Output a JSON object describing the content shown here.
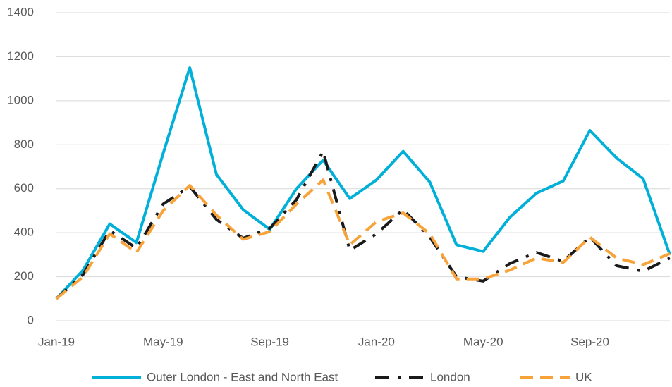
{
  "chart_data": {
    "type": "line",
    "categories": [
      "Jan-19",
      null,
      null,
      null,
      "May-19",
      null,
      null,
      null,
      "Sep-19",
      null,
      null,
      null,
      "Jan-20",
      null,
      null,
      null,
      "May-20",
      null,
      null,
      null,
      "Sep-20",
      null,
      null,
      null
    ],
    "series": [
      {
        "name": "Outer London - East and North East",
        "color": "#00b0d8",
        "dash": "solid",
        "values": [
          100,
          230,
          440,
          355,
          760,
          1150,
          665,
          505,
          415,
          600,
          730,
          555,
          640,
          770,
          630,
          345,
          315,
          470,
          580,
          635,
          865,
          740,
          645,
          300
        ]
      },
      {
        "name": "London",
        "color": "#1a1a1a",
        "dash": "dash-dot",
        "values": [
          100,
          210,
          410,
          330,
          530,
          610,
          460,
          375,
          420,
          550,
          770,
          320,
          395,
          505,
          380,
          200,
          180,
          260,
          310,
          270,
          380,
          250,
          225,
          285
        ]
      },
      {
        "name": "UK",
        "color": "#f7a33a",
        "dash": "dash",
        "values": [
          100,
          200,
          395,
          310,
          500,
          615,
          480,
          370,
          405,
          530,
          640,
          345,
          450,
          490,
          395,
          190,
          190,
          230,
          285,
          265,
          380,
          285,
          255,
          305
        ]
      }
    ],
    "ylim": [
      0,
      1400
    ],
    "yticks": [
      0,
      200,
      400,
      600,
      800,
      1000,
      1200,
      1400
    ],
    "grid": true,
    "legend": "bottom"
  }
}
